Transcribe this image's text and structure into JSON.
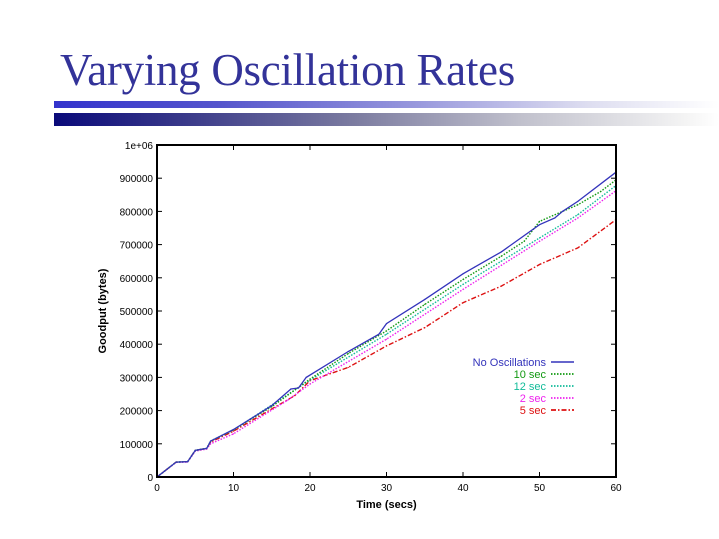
{
  "slide": {
    "title": "Varying Oscillation Rates"
  },
  "chart_data": {
    "type": "line",
    "title": "",
    "xlabel": "Time (secs)",
    "ylabel": "Goodput (bytes)",
    "xlim": [
      0,
      60
    ],
    "ylim": [
      0,
      1000000
    ],
    "xticks": [
      0,
      10,
      20,
      30,
      40,
      50,
      60
    ],
    "xtick_labels": [
      "0",
      "10",
      "20",
      "30",
      "40",
      "50",
      "60"
    ],
    "yticks": [
      0,
      100000,
      200000,
      300000,
      400000,
      500000,
      600000,
      700000,
      800000,
      900000,
      1000000
    ],
    "ytick_labels": [
      "0",
      "100000",
      "200000",
      "300000",
      "400000",
      "500000",
      "600000",
      "700000",
      "800000",
      "900000",
      "1e+06"
    ],
    "grid": false,
    "legend_position": "lower-right",
    "series": [
      {
        "name": "No Oscillations",
        "color": "#3333bb",
        "style": "solid",
        "x": [
          0,
          2.5,
          4,
          5,
          6.5,
          7,
          10,
          15,
          17.5,
          18.5,
          19.5,
          25,
          29,
          30,
          35,
          40,
          41.5,
          45,
          50,
          52,
          53,
          55,
          60
        ],
        "y": [
          0,
          45000,
          46000,
          80000,
          86000,
          108000,
          143000,
          215000,
          265000,
          268000,
          300000,
          378000,
          430000,
          462000,
          535000,
          612000,
          632000,
          678000,
          760000,
          780000,
          800000,
          830000,
          918000
        ]
      },
      {
        "name": "10 sec",
        "color": "#119911",
        "style": "dotted",
        "x": [
          0,
          2.5,
          4,
          5,
          6.5,
          7,
          10,
          15,
          20,
          25,
          30,
          35,
          40,
          45,
          48,
          50,
          55,
          58,
          60
        ],
        "y": [
          0,
          45000,
          46000,
          80000,
          86000,
          108000,
          142000,
          212000,
          295000,
          372000,
          440000,
          520000,
          595000,
          665000,
          710000,
          770000,
          820000,
          860000,
          895000
        ]
      },
      {
        "name": "12 sec",
        "color": "#11bb99",
        "style": "dotted",
        "x": [
          0,
          2.5,
          4,
          5,
          6.5,
          7,
          10,
          20,
          30,
          40,
          45,
          50,
          55,
          60
        ],
        "y": [
          0,
          45000,
          46000,
          80000,
          86000,
          108000,
          142000,
          292000,
          430000,
          580000,
          650000,
          720000,
          790000,
          878000
        ]
      },
      {
        "name": "2 sec",
        "color": "#ee22ee",
        "style": "dotted",
        "x": [
          0,
          2.5,
          4,
          5,
          6.5,
          7,
          10,
          17,
          20,
          30,
          40,
          50,
          55,
          60
        ],
        "y": [
          0,
          44000,
          45000,
          78000,
          84000,
          100000,
          130000,
          230000,
          280000,
          415000,
          565000,
          710000,
          780000,
          862000
        ]
      },
      {
        "name": "5 sec",
        "color": "#dd1111",
        "style": "dashdot",
        "x": [
          0,
          2.5,
          4,
          5,
          6.5,
          7,
          10,
          15,
          18,
          20,
          25,
          30,
          35,
          40,
          45,
          50,
          55,
          60
        ],
        "y": [
          0,
          45000,
          46000,
          80000,
          86000,
          105000,
          138000,
          205000,
          245000,
          290000,
          330000,
          395000,
          450000,
          525000,
          575000,
          640000,
          690000,
          775000
        ]
      }
    ]
  }
}
